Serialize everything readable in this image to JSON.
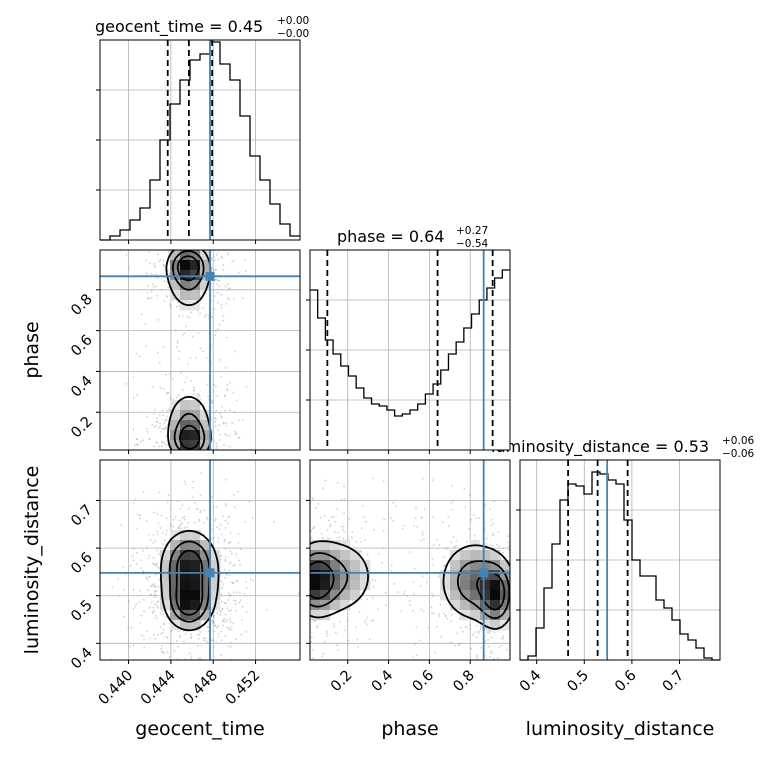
{
  "chart_data": {
    "type": "corner",
    "parameters": [
      "geocent_time",
      "phase",
      "luminosity_distance"
    ],
    "axis_labels": [
      "geocent_time",
      "phase",
      "luminosity_distance"
    ],
    "ranges": {
      "geocent_time": [
        0.4373,
        0.4562
      ],
      "phase": [
        0.015,
        0.995
      ],
      "luminosity_distance": [
        0.365,
        0.785
      ]
    },
    "ticks": {
      "geocent_time": [
        "0.440",
        "0.444",
        "0.448",
        "0.452"
      ],
      "phase": [
        "0.2",
        "0.4",
        "0.6",
        "0.8"
      ],
      "luminosity_distance": [
        "0.4",
        "0.5",
        "0.6",
        "0.7"
      ],
      "luminosity_distance_y": [
        "0.4",
        "0.5",
        "0.6",
        "0.7"
      ]
    },
    "truths": {
      "geocent_time": 0.4477,
      "phase": 0.866,
      "luminosity_distance": 0.548
    },
    "summaries": [
      {
        "parameter": "geocent_time",
        "median": 0.4457,
        "lower": 0.4437,
        "upper": 0.4479,
        "title_main": "geocent_time = 0.45",
        "title_plus": "+0.00",
        "title_minus": "−0.00"
      },
      {
        "parameter": "phase",
        "median": 0.64,
        "lower": 0.1,
        "upper": 0.91,
        "title_main": "phase = 0.64",
        "title_plus": "+0.27",
        "title_minus": "−0.54"
      },
      {
        "parameter": "luminosity_distance",
        "median": 0.528,
        "lower": 0.466,
        "upper": 0.591,
        "title_main": "luminosity_distance = 0.53",
        "title_plus": "+0.06",
        "title_minus": "−0.06"
      }
    ],
    "histograms": {
      "geocent_time": {
        "range": [
          0.4373,
          0.4562
        ],
        "counts": [
          0.0,
          0.02,
          0.05,
          0.1,
          0.16,
          0.3,
          0.5,
          0.68,
          0.8,
          0.9,
          0.93,
          0.99,
          0.88,
          0.8,
          0.62,
          0.42,
          0.3,
          0.18,
          0.08,
          0.02
        ]
      },
      "phase": {
        "range": [
          0.015,
          0.995
        ],
        "counts": [
          0.8,
          0.66,
          0.55,
          0.48,
          0.42,
          0.37,
          0.31,
          0.26,
          0.23,
          0.22,
          0.2,
          0.17,
          0.18,
          0.2,
          0.23,
          0.28,
          0.33,
          0.4,
          0.48,
          0.54,
          0.61,
          0.68,
          0.75,
          0.81,
          0.86,
          0.9
        ]
      },
      "luminosity_distance": {
        "range": [
          0.365,
          0.785
        ],
        "counts": [
          0.0,
          0.02,
          0.16,
          0.36,
          0.58,
          0.8,
          0.88,
          0.87,
          0.83,
          0.94,
          0.93,
          0.9,
          0.88,
          0.7,
          0.5,
          0.42,
          0.42,
          0.3,
          0.26,
          0.2,
          0.13,
          0.1,
          0.06,
          0.01,
          0.0
        ]
      }
    },
    "joint_density": [
      {
        "x": "geocent_time",
        "y": "phase",
        "cx": [
          0.4456,
          0.4457,
          0.4458,
          0.4457
        ],
        "cy": [
          0.92,
          0.86,
          0.06,
          0.14
        ],
        "sx": [
          0.001,
          0.0013,
          0.001,
          0.0013
        ],
        "sy": [
          0.05,
          0.1,
          0.05,
          0.1
        ],
        "w": [
          1.0,
          0.8,
          1.0,
          0.8
        ]
      },
      {
        "x": "geocent_time",
        "y": "luminosity_distance",
        "cx": [
          0.4457,
          0.4458,
          0.4457
        ],
        "cy": [
          0.48,
          0.535,
          0.58
        ],
        "sx": [
          0.0012,
          0.0016,
          0.0014
        ],
        "sy": [
          0.03,
          0.05,
          0.035
        ],
        "w": [
          0.9,
          1.0,
          0.6
        ]
      },
      {
        "x": "phase",
        "y": "luminosity_distance",
        "cx": [
          0.04,
          0.14,
          0.82,
          0.93
        ],
        "cy": [
          0.53,
          0.54,
          0.53,
          0.5
        ],
        "sx": [
          0.06,
          0.12,
          0.1,
          0.05
        ],
        "sy": [
          0.04,
          0.05,
          0.05,
          0.04
        ],
        "w": [
          1.0,
          0.7,
          0.9,
          1.0
        ]
      }
    ],
    "colors": {
      "truth": "#4682b4",
      "hist": "#000000",
      "grid": "#b0b0b0",
      "quantile": "#000000",
      "contour": "#000000"
    },
    "grid": true
  }
}
